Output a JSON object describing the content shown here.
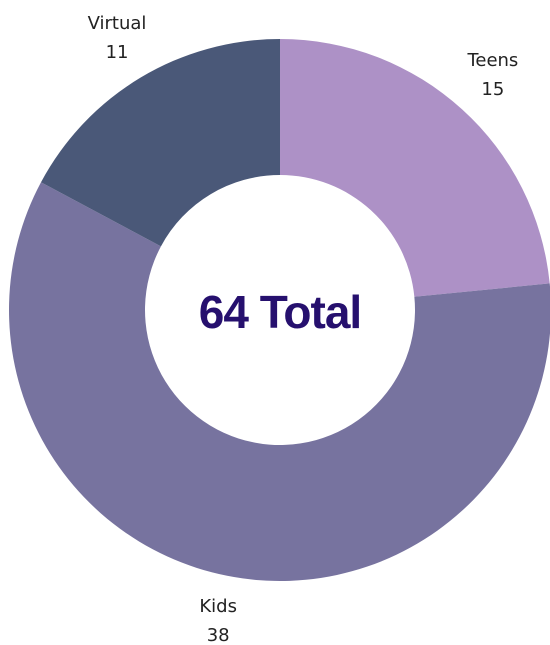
{
  "chart_data": {
    "type": "donut",
    "center_label": "64 Total",
    "categories": [
      "Teens",
      "Kids",
      "Virtual"
    ],
    "values": [
      15,
      38,
      11
    ],
    "colors": [
      "#ad91c6",
      "#77739f",
      "#4a5878"
    ]
  }
}
